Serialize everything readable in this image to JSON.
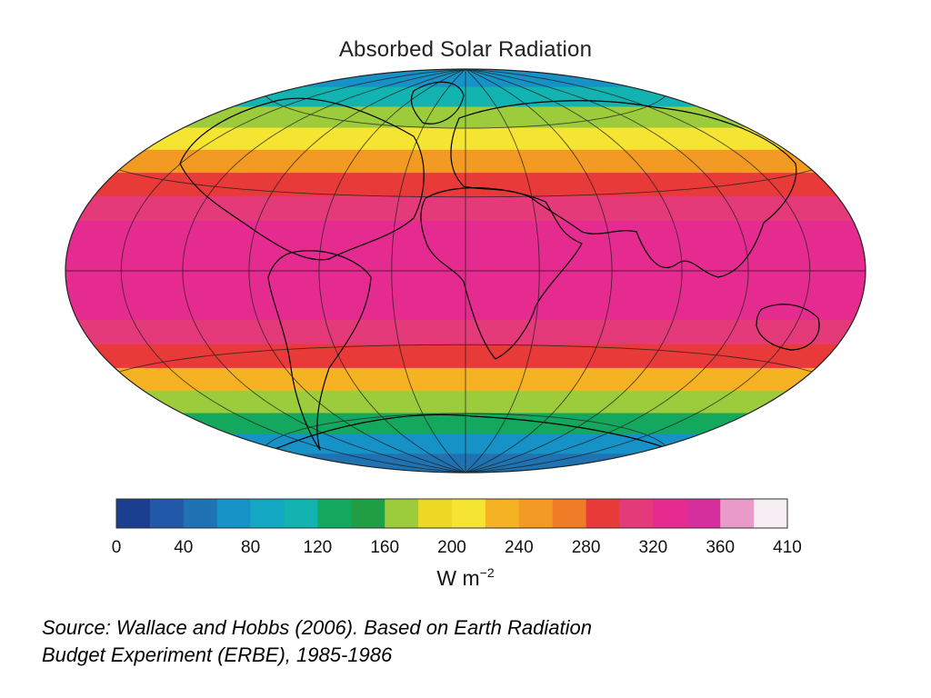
{
  "title": "Absorbed Solar Radiation",
  "map": {
    "projection": "Hammer (equal-area ellipse)",
    "coastlines": true,
    "graticule": true,
    "zonal_profile": [
      {
        "lat": 90,
        "value": 60
      },
      {
        "lat": 80,
        "value": 100
      },
      {
        "lat": 70,
        "value": 140
      },
      {
        "lat": 60,
        "value": 190
      },
      {
        "lat": 50,
        "value": 240
      },
      {
        "lat": 40,
        "value": 290
      },
      {
        "lat": 30,
        "value": 320
      },
      {
        "lat": 20,
        "value": 335
      },
      {
        "lat": 10,
        "value": 340
      },
      {
        "lat": 0,
        "value": 345
      },
      {
        "lat": -10,
        "value": 345
      },
      {
        "lat": -20,
        "value": 335
      },
      {
        "lat": -30,
        "value": 320
      },
      {
        "lat": -40,
        "value": 270
      },
      {
        "lat": -50,
        "value": 200
      },
      {
        "lat": -60,
        "value": 150
      },
      {
        "lat": -70,
        "value": 100
      },
      {
        "lat": -80,
        "value": 60
      },
      {
        "lat": -90,
        "value": 40
      }
    ]
  },
  "colorbar": {
    "segments": [
      {
        "color": "#1a3f8f"
      },
      {
        "color": "#2158a8"
      },
      {
        "color": "#1f73b3"
      },
      {
        "color": "#1792c7"
      },
      {
        "color": "#13a7c4"
      },
      {
        "color": "#12b3b0"
      },
      {
        "color": "#14a85f"
      },
      {
        "color": "#1f9e44"
      },
      {
        "color": "#9ccc3c"
      },
      {
        "color": "#ecd825"
      },
      {
        "color": "#f5e432"
      },
      {
        "color": "#f5b222"
      },
      {
        "color": "#f29a24"
      },
      {
        "color": "#f07c27"
      },
      {
        "color": "#e83a39"
      },
      {
        "color": "#e53a7a"
      },
      {
        "color": "#e52b8f"
      },
      {
        "color": "#d42f9c"
      },
      {
        "color": "#e99ac8"
      },
      {
        "color": "#f6eef3"
      }
    ],
    "ticks": [
      "0",
      "40",
      "80",
      "120",
      "160",
      "200",
      "240",
      "280",
      "320",
      "360",
      "410"
    ],
    "units": "W m",
    "units_exponent": "−2"
  },
  "source": {
    "line1": "Source:  Wallace and Hobbs (2006).  Based on Earth Radiation",
    "line2": "Budget Experiment (ERBE), 1985-1986"
  }
}
